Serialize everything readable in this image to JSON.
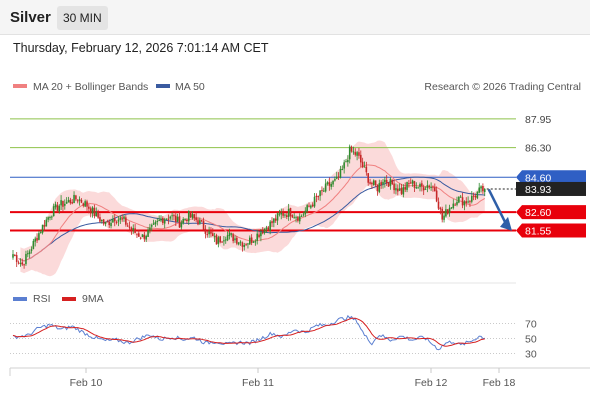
{
  "header": {
    "instrument": "Silver",
    "timeframe": "30 MIN",
    "datetime": "Thursday, February 12, 2026 7:01:14 AM CET"
  },
  "legend": {
    "ma20_bb": "MA 20 + Bollinger Bands",
    "ma50": "MA 50",
    "rsi": "RSI",
    "rsi_ma": "9MA"
  },
  "credit": "Research © 2026 Trading Central",
  "colors": {
    "up": "#2e8b2e",
    "down": "#c62828",
    "bollinger_fill": "#fad4d4",
    "ma20": "#f08080",
    "ma50": "#3a5ba0",
    "resistance": "#8ec24a",
    "pivot": "#2f5fc4",
    "support": "#e8000b",
    "last_price_bg": "#222222",
    "rsi": "#5b7fd1",
    "rsi_ma": "#d62020",
    "arrow": "#2f5fa8"
  },
  "chart_data": {
    "type": "candlestick",
    "x_ticks": [
      "Feb 10",
      "Feb 11",
      "Feb 12",
      "Feb 18"
    ],
    "y_range": [
      79.0,
      89.2
    ],
    "levels": [
      {
        "label": "87.95",
        "value": 87.95,
        "kind": "resistance"
      },
      {
        "label": "86.30",
        "value": 86.3,
        "kind": "resistance"
      },
      {
        "label": "84.60",
        "value": 84.6,
        "kind": "pivot"
      },
      {
        "label": "82.60",
        "value": 82.6,
        "kind": "support"
      },
      {
        "label": "81.55",
        "value": 81.55,
        "kind": "support"
      }
    ],
    "last_price": {
      "label": "83.93",
      "value": 83.93
    },
    "forecast_arrow": {
      "from": 83.9,
      "to": 81.7
    },
    "anchors": [
      [
        0,
        80.2
      ],
      [
        5,
        79.6
      ],
      [
        10,
        80.6
      ],
      [
        15,
        81.6
      ],
      [
        20,
        82.5
      ],
      [
        25,
        83.0
      ],
      [
        30,
        83.2
      ],
      [
        35,
        83.4
      ],
      [
        40,
        83.0
      ],
      [
        45,
        82.4
      ],
      [
        50,
        81.9
      ],
      [
        55,
        82.3
      ],
      [
        60,
        82.1
      ],
      [
        65,
        81.5
      ],
      [
        70,
        81.2
      ],
      [
        75,
        81.6
      ],
      [
        80,
        82.2
      ],
      [
        85,
        82.4
      ],
      [
        90,
        82.0
      ],
      [
        95,
        82.4
      ],
      [
        100,
        82.1
      ],
      [
        105,
        81.5
      ],
      [
        110,
        80.9
      ],
      [
        115,
        81.3
      ],
      [
        120,
        81.1
      ],
      [
        125,
        80.8
      ],
      [
        130,
        81.1
      ],
      [
        135,
        81.6
      ],
      [
        140,
        82.0
      ],
      [
        145,
        82.5
      ],
      [
        150,
        82.6
      ],
      [
        155,
        82.3
      ],
      [
        160,
        82.9
      ],
      [
        165,
        83.5
      ],
      [
        170,
        84.1
      ],
      [
        175,
        84.4
      ],
      [
        178,
        85.0
      ],
      [
        182,
        86.1
      ],
      [
        186,
        85.9
      ],
      [
        190,
        85.0
      ],
      [
        193,
        84.3
      ],
      [
        197,
        84.0
      ],
      [
        200,
        84.5
      ],
      [
        205,
        84.2
      ],
      [
        210,
        83.8
      ],
      [
        215,
        84.3
      ],
      [
        220,
        84.0
      ],
      [
        225,
        84.2
      ],
      [
        228,
        83.9
      ],
      [
        232,
        82.2
      ],
      [
        236,
        82.9
      ],
      [
        240,
        83.4
      ],
      [
        244,
        83.2
      ],
      [
        248,
        83.4
      ],
      [
        252,
        83.8
      ],
      [
        255,
        83.9
      ]
    ],
    "rsi": {
      "levels": [
        70,
        50,
        30
      ],
      "range": [
        15,
        85
      ],
      "anchors": [
        [
          0,
          52
        ],
        [
          8,
          54
        ],
        [
          14,
          64
        ],
        [
          20,
          68
        ],
        [
          26,
          62
        ],
        [
          32,
          66
        ],
        [
          38,
          58
        ],
        [
          44,
          51
        ],
        [
          50,
          47
        ],
        [
          56,
          48
        ],
        [
          62,
          44
        ],
        [
          68,
          50
        ],
        [
          74,
          55
        ],
        [
          80,
          49
        ],
        [
          86,
          52
        ],
        [
          92,
          49
        ],
        [
          98,
          51
        ],
        [
          104,
          44
        ],
        [
          110,
          46
        ],
        [
          116,
          42
        ],
        [
          122,
          45
        ],
        [
          128,
          44
        ],
        [
          134,
          50
        ],
        [
          140,
          57
        ],
        [
          146,
          52
        ],
        [
          152,
          62
        ],
        [
          158,
          58
        ],
        [
          164,
          67
        ],
        [
          170,
          68
        ],
        [
          176,
          75
        ],
        [
          182,
          78
        ],
        [
          186,
          73
        ],
        [
          190,
          54
        ],
        [
          194,
          44
        ],
        [
          198,
          55
        ],
        [
          204,
          48
        ],
        [
          210,
          53
        ],
        [
          216,
          48
        ],
        [
          222,
          52
        ],
        [
          226,
          44
        ],
        [
          230,
          36
        ],
        [
          234,
          44
        ],
        [
          238,
          46
        ],
        [
          242,
          41
        ],
        [
          248,
          47
        ],
        [
          252,
          53
        ],
        [
          255,
          51
        ]
      ]
    }
  }
}
